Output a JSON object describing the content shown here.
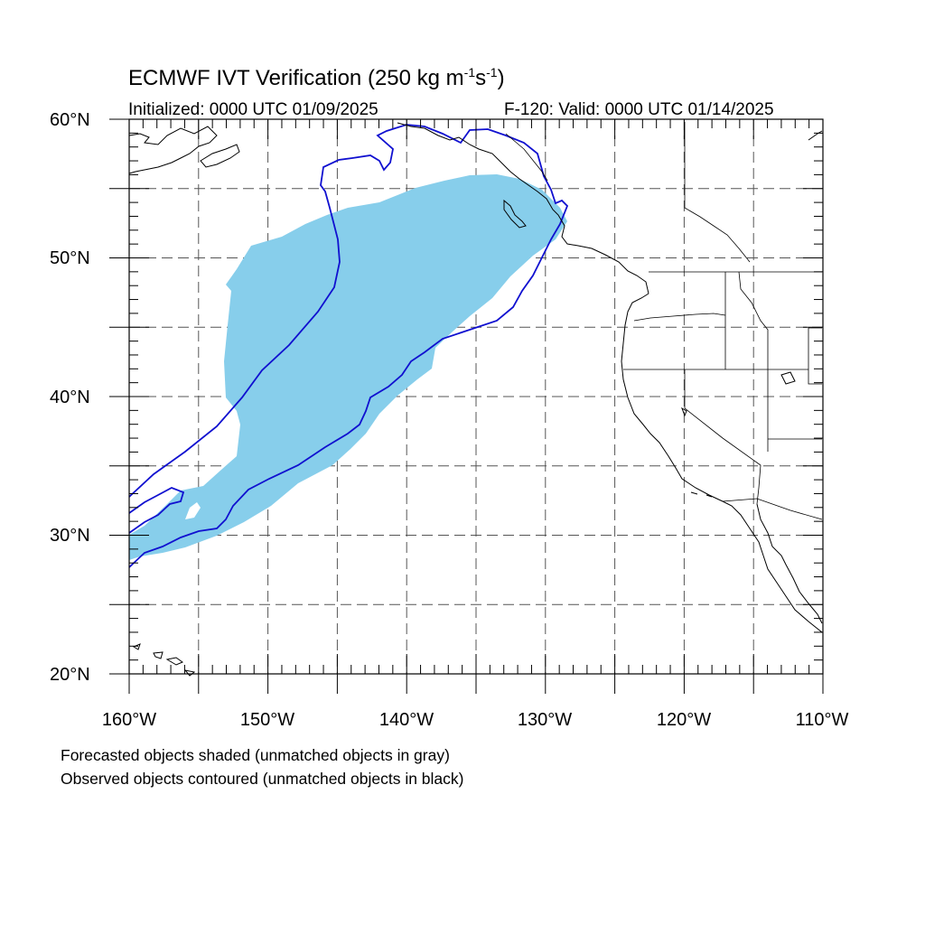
{
  "title": {
    "prefix": "ECMWF IVT Verification (250 kg m",
    "exp1": "-1",
    "mid": "s",
    "exp2": "-1",
    "suffix": ")"
  },
  "initialized": "Initialized: 0000 UTC 01/09/2025",
  "valid": "F-120: Valid: 0000 UTC 01/14/2025",
  "lat_labels": [
    "60°N",
    "50°N",
    "40°N",
    "30°N",
    "20°N"
  ],
  "lon_labels": [
    "160°W",
    "150°W",
    "140°W",
    "130°W",
    "120°W",
    "110°W"
  ],
  "notes": [
    "Forecasted objects shaded (unmatched objects in gray)",
    "Observed objects contoured (unmatched objects in black)"
  ],
  "map": {
    "lon_range": [
      -160,
      -110
    ],
    "lat_range": [
      20,
      60
    ],
    "grid_lons": [
      -155,
      -150,
      -145,
      -140,
      -135,
      -130,
      -125,
      -120,
      -115
    ],
    "grid_lats": [
      25,
      30,
      35,
      40,
      45,
      50,
      55
    ],
    "colors": {
      "forecast_fill": "#87ceeb",
      "observed_contour": "#1010d0",
      "coastline": "#000000",
      "grid": "#555555"
    }
  }
}
